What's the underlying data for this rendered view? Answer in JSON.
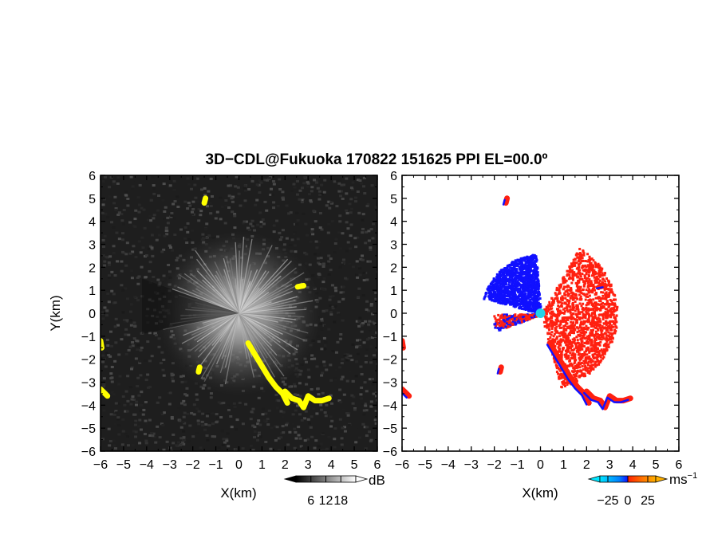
{
  "title": "3D−CDL@Fukuoka 170822 151625 PPI EL=00.0º",
  "colors": {
    "background": "#ffffff",
    "axes": "#000000",
    "snr_panel_background": "#1e1e1e",
    "feature_yellow": "#ffff00",
    "approaching_blue": "#1010ff",
    "receding_red": "#ff2010",
    "radar_site_cyan": "#22d3e6"
  },
  "chart_data": [
    {
      "type": "heatmap",
      "panel": "left",
      "quantity": "SNR",
      "xlabel": "X(km)",
      "ylabel": "Y(km)",
      "xlim": [
        -6,
        6
      ],
      "ylim": [
        -6,
        6
      ],
      "xticks": [
        -6,
        -5,
        -4,
        -3,
        -2,
        -1,
        0,
        1,
        2,
        3,
        4,
        5,
        6
      ],
      "yticks": [
        -6,
        -5,
        -4,
        -3,
        -2,
        -1,
        0,
        1,
        2,
        3,
        4,
        5,
        6
      ],
      "x_tick_labels": [
        "−6",
        "−5",
        "−4",
        "−3",
        "−2",
        "−1",
        "0",
        "1",
        "2",
        "3",
        "4",
        "5",
        "6"
      ],
      "y_tick_labels": [
        "6",
        "5",
        "4",
        "3",
        "2",
        "1",
        "0",
        "−1",
        "−2",
        "−3",
        "−4",
        "−5",
        "−6"
      ],
      "radar_site": [
        0,
        0
      ],
      "yellow_features": [
        {
          "points": [
            [
              0.4,
              -1.3
            ],
            [
              0.7,
              -1.8
            ],
            [
              1.0,
              -2.3
            ],
            [
              1.3,
              -2.8
            ],
            [
              1.6,
              -3.2
            ],
            [
              1.9,
              -3.5
            ],
            [
              2.1,
              -3.9
            ]
          ]
        },
        {
          "points": [
            [
              2.0,
              -3.4
            ],
            [
              2.3,
              -3.7
            ],
            [
              2.6,
              -3.8
            ],
            [
              2.8,
              -4.1
            ],
            [
              3.0,
              -3.6
            ],
            [
              3.3,
              -3.8
            ],
            [
              3.6,
              -3.8
            ],
            [
              3.9,
              -3.7
            ]
          ]
        },
        {
          "points": [
            [
              -6.0,
              -3.3
            ],
            [
              -5.8,
              -3.5
            ],
            [
              -5.7,
              -3.6
            ]
          ]
        },
        {
          "points": [
            [
              -6.0,
              -1.2
            ],
            [
              -5.95,
              -1.5
            ]
          ]
        },
        {
          "points": [
            [
              -1.5,
              4.8
            ],
            [
              -1.45,
              5.0
            ]
          ]
        },
        {
          "points": [
            [
              -1.7,
              -2.35
            ],
            [
              -1.75,
              -2.55
            ]
          ]
        },
        {
          "points": [
            [
              2.55,
              1.15
            ],
            [
              2.8,
              1.2
            ]
          ]
        }
      ],
      "colorbar": {
        "unit": "dB",
        "ticks": [
          6,
          12,
          18
        ],
        "range": [
          0,
          24
        ],
        "tick_labels": [
          "6",
          "12",
          "18"
        ],
        "colors": [
          "#000000",
          "#ffffff"
        ]
      }
    },
    {
      "type": "heatmap",
      "panel": "right",
      "quantity": "Doppler velocity",
      "xlabel": "X(km)",
      "xlim": [
        -6,
        6
      ],
      "ylim": [
        -6,
        6
      ],
      "xticks": [
        -6,
        -5,
        -4,
        -3,
        -2,
        -1,
        0,
        1,
        2,
        3,
        4,
        5,
        6
      ],
      "yticks": [
        -6,
        -5,
        -4,
        -3,
        -2,
        -1,
        0,
        1,
        2,
        3,
        4,
        5,
        6
      ],
      "x_tick_labels": [
        "−6",
        "−5",
        "−4",
        "−3",
        "−2",
        "−1",
        "0",
        "1",
        "2",
        "3",
        "4",
        "5",
        "6"
      ],
      "y_tick_labels": [
        "6",
        "5",
        "4",
        "3",
        "2",
        "1",
        "0",
        "−1",
        "−2",
        "−3",
        "−4",
        "−5",
        "−6"
      ],
      "radar_site": [
        0,
        0
      ],
      "blue_region": {
        "angle_range_deg": [
          95,
          165
        ],
        "max_range_km": 2.6
      },
      "red_region": {
        "angle_range_deg": [
          -75,
          60
        ],
        "max_range_km": 3.3
      },
      "colorbar": {
        "unit": "ms",
        "unit_exponent": "−1",
        "ticks": [
          -25,
          0,
          25
        ],
        "range": [
          -35,
          35
        ],
        "tick_labels": [
          "−25",
          "0",
          "25"
        ],
        "colors": [
          "#00e5ff",
          "#0080ff",
          "#1010ff",
          "#ff2000",
          "#ff7000",
          "#ffb000"
        ]
      }
    }
  ]
}
